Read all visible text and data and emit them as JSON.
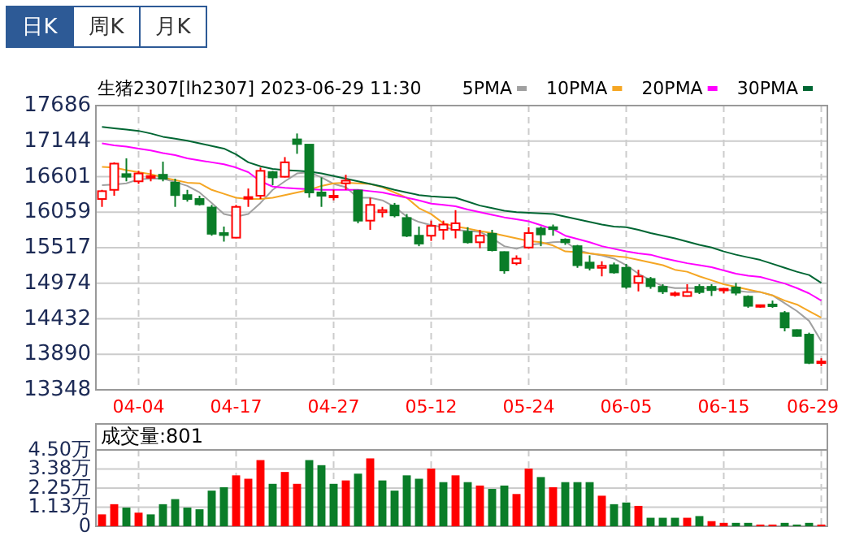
{
  "chart_data": [
    {
      "type": "candlestick",
      "title": "生猪2307[lh2307] 2023-06-29 11:30",
      "annotations": [
        "日K",
        "周K",
        "月K"
      ],
      "categories": [
        null,
        null,
        null,
        "04-04",
        null,
        null,
        null,
        null,
        null,
        null,
        null,
        "04-17",
        null,
        null,
        null,
        null,
        null,
        null,
        null,
        "04-27",
        null,
        null,
        null,
        null,
        null,
        null,
        null,
        "05-12",
        null,
        null,
        null,
        null,
        null,
        null,
        null,
        "05-24",
        null,
        null,
        null,
        null,
        null,
        null,
        null,
        "06-05",
        null,
        null,
        null,
        null,
        null,
        null,
        null,
        "06-15",
        null,
        null,
        null,
        null,
        null,
        null,
        null,
        "06-29"
      ],
      "ohlc": [
        [
          16260,
          16400,
          16140,
          16380
        ],
        [
          16400,
          16820,
          16310,
          16800
        ],
        [
          16640,
          16880,
          16530,
          16600
        ],
        [
          16530,
          16690,
          16490,
          16650
        ],
        [
          16600,
          16710,
          16530,
          16610
        ],
        [
          16630,
          16830,
          16530,
          16570
        ],
        [
          16510,
          16570,
          16140,
          16320
        ],
        [
          16320,
          16400,
          16220,
          16260
        ],
        [
          16260,
          16310,
          16160,
          16180
        ],
        [
          16130,
          16170,
          15700,
          15730
        ],
        [
          15740,
          15840,
          15610,
          15710
        ],
        [
          15670,
          16170,
          15660,
          16140
        ],
        [
          16270,
          16420,
          16140,
          16290
        ],
        [
          16310,
          16740,
          16260,
          16690
        ],
        [
          16670,
          16690,
          16470,
          16590
        ],
        [
          16600,
          16900,
          16590,
          16820
        ],
        [
          17170,
          17260,
          16950,
          17100
        ],
        [
          17090,
          17090,
          16280,
          16360
        ],
        [
          16360,
          16590,
          16140,
          16310
        ],
        [
          16300,
          16400,
          16240,
          16310
        ],
        [
          16500,
          16630,
          16400,
          16540
        ],
        [
          16390,
          16400,
          15890,
          15930
        ],
        [
          15930,
          16280,
          15790,
          16170
        ],
        [
          16060,
          16140,
          15980,
          16090
        ],
        [
          16160,
          16200,
          15980,
          16010
        ],
        [
          15970,
          16030,
          15680,
          15700
        ],
        [
          15700,
          15840,
          15540,
          15580
        ],
        [
          15700,
          15930,
          15620,
          15850
        ],
        [
          15790,
          15930,
          15640,
          15870
        ],
        [
          15790,
          16090,
          15660,
          15890
        ],
        [
          15760,
          15830,
          15580,
          15600
        ],
        [
          15600,
          15790,
          15510,
          15700
        ],
        [
          15730,
          15790,
          15460,
          15480
        ],
        [
          15450,
          15460,
          15120,
          15170
        ],
        [
          15280,
          15400,
          15250,
          15350
        ],
        [
          15520,
          15830,
          15500,
          15740
        ],
        [
          15810,
          15840,
          15540,
          15720
        ],
        [
          15830,
          15870,
          15700,
          15800
        ],
        [
          15640,
          15660,
          15560,
          15600
        ],
        [
          15540,
          15560,
          15210,
          15250
        ],
        [
          15290,
          15400,
          15170,
          15210
        ],
        [
          15210,
          15310,
          15080,
          15240
        ],
        [
          15250,
          15290,
          15120,
          15140
        ],
        [
          15210,
          15270,
          14890,
          14920
        ],
        [
          14980,
          15180,
          14850,
          15080
        ],
        [
          15040,
          15070,
          14890,
          14930
        ],
        [
          14920,
          14960,
          14810,
          14850
        ],
        [
          14800,
          14850,
          14770,
          14820
        ],
        [
          14780,
          14960,
          14770,
          14840
        ],
        [
          14920,
          14960,
          14810,
          14840
        ],
        [
          14920,
          14960,
          14780,
          14870
        ],
        [
          14870,
          14900,
          14820,
          14890
        ],
        [
          14910,
          14980,
          14790,
          14830
        ],
        [
          14770,
          14790,
          14600,
          14630
        ],
        [
          14620,
          14650,
          14600,
          14640
        ],
        [
          14650,
          14710,
          14600,
          14630
        ],
        [
          14520,
          14550,
          14240,
          14300
        ],
        [
          14260,
          14270,
          14160,
          14170
        ],
        [
          14190,
          14220,
          13740,
          13760
        ],
        [
          13760,
          13830,
          13710,
          13780
        ]
      ],
      "series": [
        {
          "name": "5PMA",
          "type": "line",
          "color": "#a0a0a0",
          "values": [
            16470,
            16480,
            16500,
            16560,
            16570,
            16570,
            16520,
            16460,
            16360,
            16200,
            16030,
            15990,
            16030,
            16200,
            16400,
            16530,
            16650,
            16670,
            16590,
            16490,
            16440,
            16280,
            16280,
            16240,
            16140,
            15990,
            15910,
            15860,
            15830,
            15790,
            15770,
            15760,
            15660,
            15540,
            15500,
            15560,
            15580,
            15600,
            15610,
            15480,
            15430,
            15400,
            15350,
            15250,
            15120,
            15020,
            14930,
            14900,
            14900,
            14900,
            14890,
            14880,
            14860,
            14840,
            14840,
            14790,
            14670,
            14550,
            14400,
            14090
          ]
        },
        {
          "name": "10PMA",
          "type": "line",
          "color": "#f5a623",
          "values": [
            16750,
            16740,
            16700,
            16670,
            16640,
            16590,
            16550,
            16510,
            16500,
            16400,
            16340,
            16280,
            16260,
            16260,
            16280,
            16320,
            16360,
            16400,
            16460,
            16500,
            16510,
            16500,
            16490,
            16440,
            16360,
            16280,
            16120,
            16030,
            15890,
            15840,
            15810,
            15770,
            15740,
            15700,
            15660,
            15620,
            15600,
            15550,
            15460,
            15450,
            15430,
            15410,
            15390,
            15370,
            15330,
            15290,
            15250,
            15180,
            15150,
            15080,
            15020,
            14960,
            14920,
            14880,
            14840,
            14790,
            14710,
            14650,
            14550,
            14450
          ]
        },
        {
          "name": "20PMA",
          "type": "line",
          "color": "#ff00ff",
          "values": [
            17110,
            17080,
            17060,
            17030,
            17000,
            16960,
            16930,
            16880,
            16850,
            16820,
            16790,
            16740,
            16670,
            16530,
            16450,
            16430,
            16420,
            16410,
            16400,
            16400,
            16400,
            16400,
            16380,
            16360,
            16320,
            16280,
            16240,
            16190,
            16170,
            16150,
            16100,
            16060,
            16020,
            15980,
            15950,
            15920,
            15860,
            15800,
            15700,
            15650,
            15600,
            15540,
            15500,
            15460,
            15430,
            15410,
            15360,
            15320,
            15280,
            15250,
            15220,
            15170,
            15120,
            15090,
            15070,
            15020,
            14970,
            14900,
            14820,
            14710
          ]
        },
        {
          "name": "30PMA",
          "type": "line",
          "color": "#006633",
          "values": [
            17360,
            17340,
            17320,
            17300,
            17260,
            17210,
            17180,
            17150,
            17110,
            17070,
            17030,
            16940,
            16820,
            16760,
            16720,
            16700,
            16690,
            16680,
            16650,
            16610,
            16570,
            16530,
            16490,
            16450,
            16400,
            16360,
            16320,
            16300,
            16290,
            16280,
            16220,
            16160,
            16120,
            16080,
            16060,
            16050,
            16040,
            16030,
            15990,
            15950,
            15910,
            15870,
            15840,
            15830,
            15790,
            15740,
            15700,
            15660,
            15610,
            15560,
            15520,
            15460,
            15410,
            15370,
            15330,
            15270,
            15210,
            15150,
            15100,
            14980
          ]
        }
      ],
      "ylim": [
        13348,
        17686
      ],
      "yticks": [
        13348,
        13890,
        14432,
        14974,
        15517,
        16059,
        16601,
        17144,
        17686
      ],
      "grid": true,
      "legend": "top right"
    },
    {
      "type": "bar",
      "title": "成交量:801",
      "tick_labels": "y",
      "categories": [
        null,
        null,
        null,
        null,
        null,
        null,
        null,
        null,
        null,
        null,
        null,
        null,
        null,
        null,
        null,
        null,
        null,
        null,
        null,
        null,
        null,
        null,
        null,
        null,
        null,
        null,
        null,
        null,
        null,
        null,
        null,
        null,
        null,
        null,
        null,
        null,
        null,
        null,
        null,
        null,
        null,
        null,
        null,
        null,
        null,
        null,
        null,
        null,
        null,
        null,
        null,
        null,
        null,
        null,
        null,
        null,
        null,
        null,
        null,
        null
      ],
      "values": [
        0.7,
        1.3,
        1.1,
        0.8,
        0.7,
        1.3,
        1.6,
        1.1,
        1.0,
        2.1,
        2.3,
        3.0,
        2.8,
        3.9,
        2.5,
        3.2,
        2.5,
        3.9,
        3.6,
        2.5,
        2.7,
        3.1,
        4.0,
        2.7,
        2.1,
        3.0,
        2.8,
        3.4,
        2.6,
        3.0,
        2.6,
        2.4,
        2.2,
        2.4,
        1.9,
        3.4,
        2.9,
        2.3,
        2.6,
        2.6,
        2.6,
        1.8,
        1.3,
        1.4,
        1.2,
        0.5,
        0.5,
        0.5,
        0.5,
        0.6,
        0.3,
        0.2,
        0.2,
        0.2,
        0.1,
        0.1,
        0.2,
        0.1,
        0.2,
        0.1
      ],
      "colors": [
        "#ff0000",
        "#ff0000",
        "#0a7d28",
        "#ff0000",
        "#0a7d28",
        "#0a7d28",
        "#0a7d28",
        "#0a7d28",
        "#0a7d28",
        "#0a7d28",
        "#0a7d28",
        "#ff0000",
        "#ff0000",
        "#ff0000",
        "#0a7d28",
        "#ff0000",
        "#ff0000",
        "#0a7d28",
        "#0a7d28",
        "#0a7d28",
        "#ff0000",
        "#0a7d28",
        "#ff0000",
        "#0a7d28",
        "#0a7d28",
        "#0a7d28",
        "#0a7d28",
        "#ff0000",
        "#0a7d28",
        "#ff0000",
        "#0a7d28",
        "#ff0000",
        "#0a7d28",
        "#0a7d28",
        "#ff0000",
        "#ff0000",
        "#0a7d28",
        "#ff0000",
        "#0a7d28",
        "#0a7d28",
        "#0a7d28",
        "#ff0000",
        "#0a7d28",
        "#0a7d28",
        "#ff0000",
        "#0a7d28",
        "#0a7d28",
        "#0a7d28",
        "#ff0000",
        "#0a7d28",
        "#ff0000",
        "#ff0000",
        "#0a7d28",
        "#0a7d28",
        "#ff0000",
        "#ff0000",
        "#0a7d28",
        "#0a7d28",
        "#0a7d28",
        "#ff0000"
      ],
      "ylim": [
        0,
        4.5
      ],
      "yticks": [
        0,
        {
          "value": 1.125,
          "label": "1.13万"
        },
        {
          "value": 2.25,
          "label": "2.25万"
        },
        {
          "value": 3.375,
          "label": "3.38万"
        },
        {
          "value": 4.5,
          "label": "4.50万"
        }
      ],
      "grid": true
    }
  ]
}
